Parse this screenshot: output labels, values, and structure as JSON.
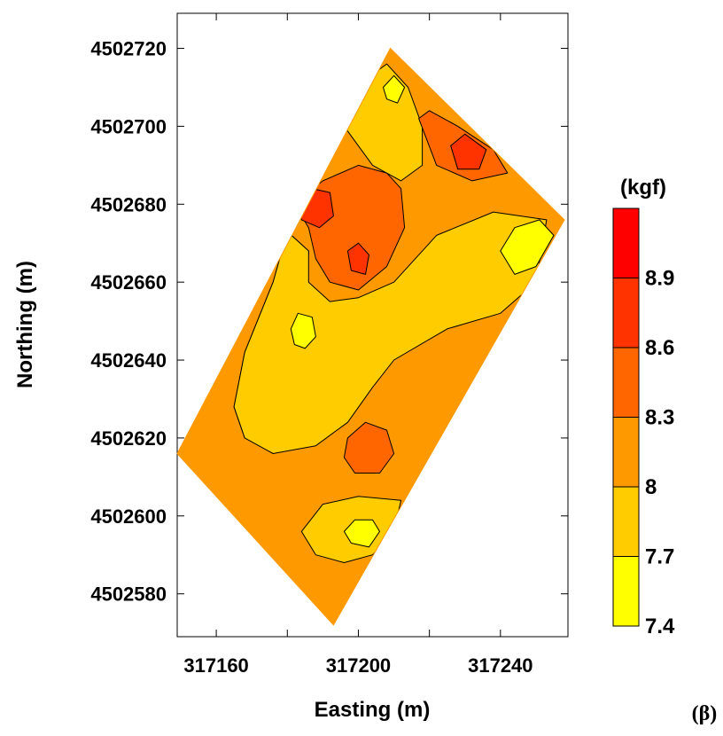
{
  "chart_data": {
    "type": "contour",
    "title": "",
    "xlabel": "Easting (m)",
    "ylabel": "Northing (m)",
    "xlim": [
      317149,
      317259
    ],
    "ylim": [
      4502569,
      4502729
    ],
    "x_ticks": [
      317160,
      317200,
      317240
    ],
    "x_minor_ticks": [
      317180,
      317220
    ],
    "y_ticks": [
      4502580,
      4502600,
      4502620,
      4502640,
      4502660,
      4502680,
      4502700,
      4502720
    ],
    "legend": {
      "title": "(kgf)",
      "placement": "right",
      "levels": [
        7.4,
        7.7,
        8,
        8.3,
        8.6,
        8.9
      ],
      "level_labels": [
        "7.4",
        "7.7",
        "8",
        "8.3",
        "8.6",
        "8.9"
      ],
      "bands": [
        {
          "from": 7.4,
          "to": 7.7,
          "color": "#ffff00"
        },
        {
          "from": 7.7,
          "to": 8.0,
          "color": "#ffcc00"
        },
        {
          "from": 8.0,
          "to": 8.3,
          "color": "#ff9900"
        },
        {
          "from": 8.3,
          "to": 8.6,
          "color": "#ff6600"
        },
        {
          "from": 8.6,
          "to": 8.9,
          "color": "#ff3300"
        },
        {
          "from": 8.9,
          "to": 9.2,
          "color": "#ff0000"
        }
      ]
    },
    "field_outline": [
      [
        317149,
        4502616
      ],
      [
        317193,
        4502572
      ],
      [
        317258,
        4502676
      ],
      [
        317209,
        4502720
      ]
    ],
    "regions": [
      {
        "level": 7.7,
        "polygon": [
          [
            317180,
            4502673
          ],
          [
            317186,
            4502668
          ],
          [
            317185,
            4502648
          ],
          [
            317178,
            4502630
          ],
          [
            317168,
            4502620
          ],
          [
            317165,
            4502628
          ],
          [
            317168,
            4502642
          ],
          [
            317176,
            4502660
          ]
        ]
      },
      {
        "level": 7.7,
        "polygon": [
          [
            317168,
            4502620
          ],
          [
            317176,
            4502616
          ],
          [
            317188,
            4502618
          ],
          [
            317197,
            4502624
          ],
          [
            317204,
            4502633
          ],
          [
            317210,
            4502640
          ],
          [
            317225,
            4502648
          ],
          [
            317240,
            4502652
          ],
          [
            317250,
            4502660
          ],
          [
            317253,
            4502676
          ],
          [
            317238,
            4502678
          ],
          [
            317222,
            4502672
          ],
          [
            317210,
            4502660
          ],
          [
            317200,
            4502656
          ],
          [
            317192,
            4502655
          ],
          [
            317186,
            4502660
          ],
          [
            317186,
            4502668
          ],
          [
            317180,
            4502673
          ],
          [
            317176,
            4502660
          ],
          [
            317168,
            4502642
          ],
          [
            317165,
            4502628
          ]
        ]
      },
      {
        "level": 7.7,
        "polygon": [
          [
            317196,
            4502708
          ],
          [
            317208,
            4502716
          ],
          [
            317214,
            4502710
          ],
          [
            317218,
            4502700
          ],
          [
            317218,
            4502690
          ],
          [
            317212,
            4502686
          ],
          [
            317204,
            4502690
          ],
          [
            317196,
            4502700
          ]
        ]
      },
      {
        "level": 7.7,
        "polygon": [
          [
            317184,
            4502596
          ],
          [
            317190,
            4502603
          ],
          [
            317200,
            4502605
          ],
          [
            317212,
            4502604
          ],
          [
            317210,
            4502596
          ],
          [
            317204,
            4502590
          ],
          [
            317196,
            4502588
          ],
          [
            317188,
            4502590
          ]
        ]
      },
      {
        "level": 8.3,
        "polygon": [
          [
            317182,
            4502680
          ],
          [
            317190,
            4502686
          ],
          [
            317200,
            4502690
          ],
          [
            317208,
            4502688
          ],
          [
            317212,
            4502684
          ],
          [
            317213,
            4502674
          ],
          [
            317208,
            4502664
          ],
          [
            317200,
            4502658
          ],
          [
            317192,
            4502660
          ],
          [
            317188,
            4502666
          ],
          [
            317186,
            4502674
          ]
        ]
      },
      {
        "level": 8.3,
        "polygon": [
          [
            317217,
            4502702
          ],
          [
            317222,
            4502690
          ],
          [
            317232,
            4502686
          ],
          [
            317242,
            4502688
          ],
          [
            317238,
            4502694
          ],
          [
            317228,
            4502700
          ],
          [
            317220,
            4502704
          ]
        ]
      },
      {
        "level": 8.3,
        "polygon": [
          [
            317197,
            4502620
          ],
          [
            317202,
            4502624
          ],
          [
            317208,
            4502622
          ],
          [
            317210,
            4502616
          ],
          [
            317206,
            4502611
          ],
          [
            317199,
            4502611
          ],
          [
            317196,
            4502615
          ]
        ]
      },
      {
        "level": 8.6,
        "polygon": [
          [
            317183,
            4502680
          ],
          [
            317187,
            4502684
          ],
          [
            317192,
            4502683
          ],
          [
            317193,
            4502677
          ],
          [
            317189,
            4502674
          ],
          [
            317184,
            4502676
          ]
        ]
      },
      {
        "level": 8.6,
        "polygon": [
          [
            317226,
            4502695
          ],
          [
            317230,
            4502698
          ],
          [
            317236,
            4502694
          ],
          [
            317234,
            4502689
          ],
          [
            317228,
            4502689
          ]
        ]
      },
      {
        "level": 8.6,
        "polygon": [
          [
            317197,
            4502668
          ],
          [
            317200,
            4502670
          ],
          [
            317203,
            4502667
          ],
          [
            317202,
            4502662
          ],
          [
            317198,
            4502663
          ]
        ]
      },
      {
        "level": 7.4,
        "polygon": [
          [
            317181,
            4502648
          ],
          [
            317183,
            4502652
          ],
          [
            317187,
            4502651
          ],
          [
            317188,
            4502646
          ],
          [
            317185,
            4502643
          ],
          [
            317182,
            4502644
          ]
        ]
      },
      {
        "level": 7.4,
        "polygon": [
          [
            317240,
            4502668
          ],
          [
            317244,
            4502674
          ],
          [
            317251,
            4502676
          ],
          [
            317255,
            4502672
          ],
          [
            317250,
            4502664
          ],
          [
            317244,
            4502662
          ]
        ]
      },
      {
        "level": 7.4,
        "polygon": [
          [
            317207,
            4502710
          ],
          [
            317210,
            4502713
          ],
          [
            317213,
            4502710
          ],
          [
            317211,
            4502706
          ],
          [
            317208,
            4502707
          ]
        ]
      },
      {
        "level": 7.4,
        "polygon": [
          [
            317196,
            4502596
          ],
          [
            317199,
            4502599
          ],
          [
            317204,
            4502599
          ],
          [
            317206,
            4502596
          ],
          [
            317203,
            4502592
          ],
          [
            317198,
            4502593
          ]
        ]
      }
    ],
    "panel_label": "(β)"
  }
}
